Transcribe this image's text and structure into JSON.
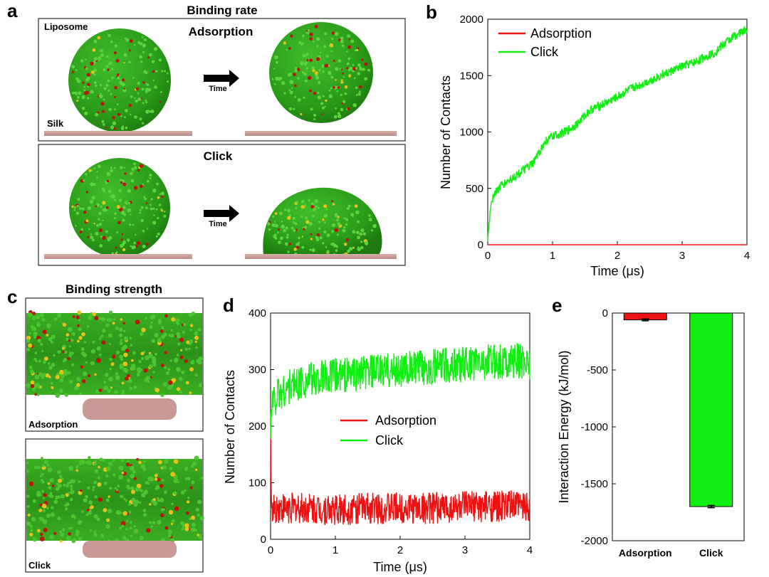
{
  "panel_a": {
    "label": "a",
    "title": "Binding rate",
    "top_box": {
      "heading": "Adsorption",
      "liposome_label": "Liposome",
      "silk_label": "Silk",
      "arrow_label": "Time"
    },
    "bottom_box": {
      "heading": "Click",
      "arrow_label": "Time"
    }
  },
  "panel_c": {
    "label": "c",
    "title": "Binding strength",
    "top_label": "Adsorption",
    "bottom_label": "Click"
  },
  "colors": {
    "adsorption": "#ee1111",
    "click": "#11ee11",
    "lipid_green": "#2e9e1a",
    "lipid_red": "#c01212",
    "lipid_yellow": "#e6c21a",
    "silk": "#c89a96"
  },
  "chart_data": [
    {
      "id": "b",
      "label": "b",
      "type": "line",
      "xlabel": "Time (μs)",
      "ylabel": "Number of Contacts",
      "xlim": [
        0,
        4
      ],
      "ylim": [
        0,
        2000
      ],
      "xticks": [
        "0",
        "1",
        "2",
        "3",
        "4"
      ],
      "yticks": [
        "0",
        "500",
        "1000",
        "1500",
        "2000"
      ],
      "legend": "top-left",
      "series": [
        {
          "name": "Adsorption",
          "color": "#ee1111",
          "x": [
            0,
            1,
            2,
            3,
            4
          ],
          "values": [
            0,
            0,
            0,
            0,
            0
          ]
        },
        {
          "name": "Click",
          "color": "#11ee11",
          "x": [
            0,
            0.05,
            0.1,
            0.2,
            0.3,
            0.5,
            0.7,
            0.8,
            0.9,
            1.0,
            1.2,
            1.4,
            1.5,
            1.6,
            1.8,
            2.0,
            2.2,
            2.4,
            2.6,
            2.8,
            3.0,
            3.2,
            3.4,
            3.5,
            3.6,
            3.8,
            4.0
          ],
          "values": [
            30,
            380,
            450,
            520,
            560,
            640,
            720,
            830,
            920,
            960,
            1000,
            1080,
            1150,
            1200,
            1250,
            1310,
            1380,
            1430,
            1480,
            1530,
            1580,
            1620,
            1680,
            1700,
            1760,
            1850,
            1910
          ]
        }
      ]
    },
    {
      "id": "d",
      "label": "d",
      "type": "line",
      "xlabel": "Time (μs)",
      "ylabel": "Number of Contacts",
      "xlim": [
        0,
        4
      ],
      "ylim": [
        0,
        400
      ],
      "xticks": [
        "0",
        "1",
        "2",
        "3",
        "4"
      ],
      "yticks": [
        "0",
        "100",
        "200",
        "300",
        "400"
      ],
      "legend": "center",
      "series": [
        {
          "name": "Adsorption",
          "color": "#ee1111",
          "x": [
            0,
            0.01,
            0.05,
            0.5,
            1,
            1.5,
            2,
            2.5,
            3,
            3.5,
            4
          ],
          "values": [
            190,
            60,
            55,
            55,
            52,
            55,
            55,
            55,
            58,
            58,
            60
          ]
        },
        {
          "name": "Click",
          "color": "#11ee11",
          "x": [
            0,
            0.02,
            0.1,
            0.3,
            0.5,
            0.8,
            1,
            1.5,
            2,
            2.5,
            3,
            3.5,
            4
          ],
          "values": [
            200,
            240,
            255,
            270,
            280,
            285,
            290,
            295,
            300,
            305,
            310,
            315,
            315
          ]
        }
      ]
    },
    {
      "id": "e",
      "label": "e",
      "type": "bar",
      "ylabel": "Interaction Energy (kJ/mol)",
      "categories": [
        "Adsorption",
        "Click"
      ],
      "values": [
        -60,
        -1700
      ],
      "errors": [
        8,
        10
      ],
      "colors": [
        "#ee1111",
        "#11ee11"
      ],
      "ylim": [
        -2000,
        0
      ],
      "yticks": [
        "0",
        "-500",
        "-1000",
        "-1500",
        "-2000"
      ]
    }
  ]
}
